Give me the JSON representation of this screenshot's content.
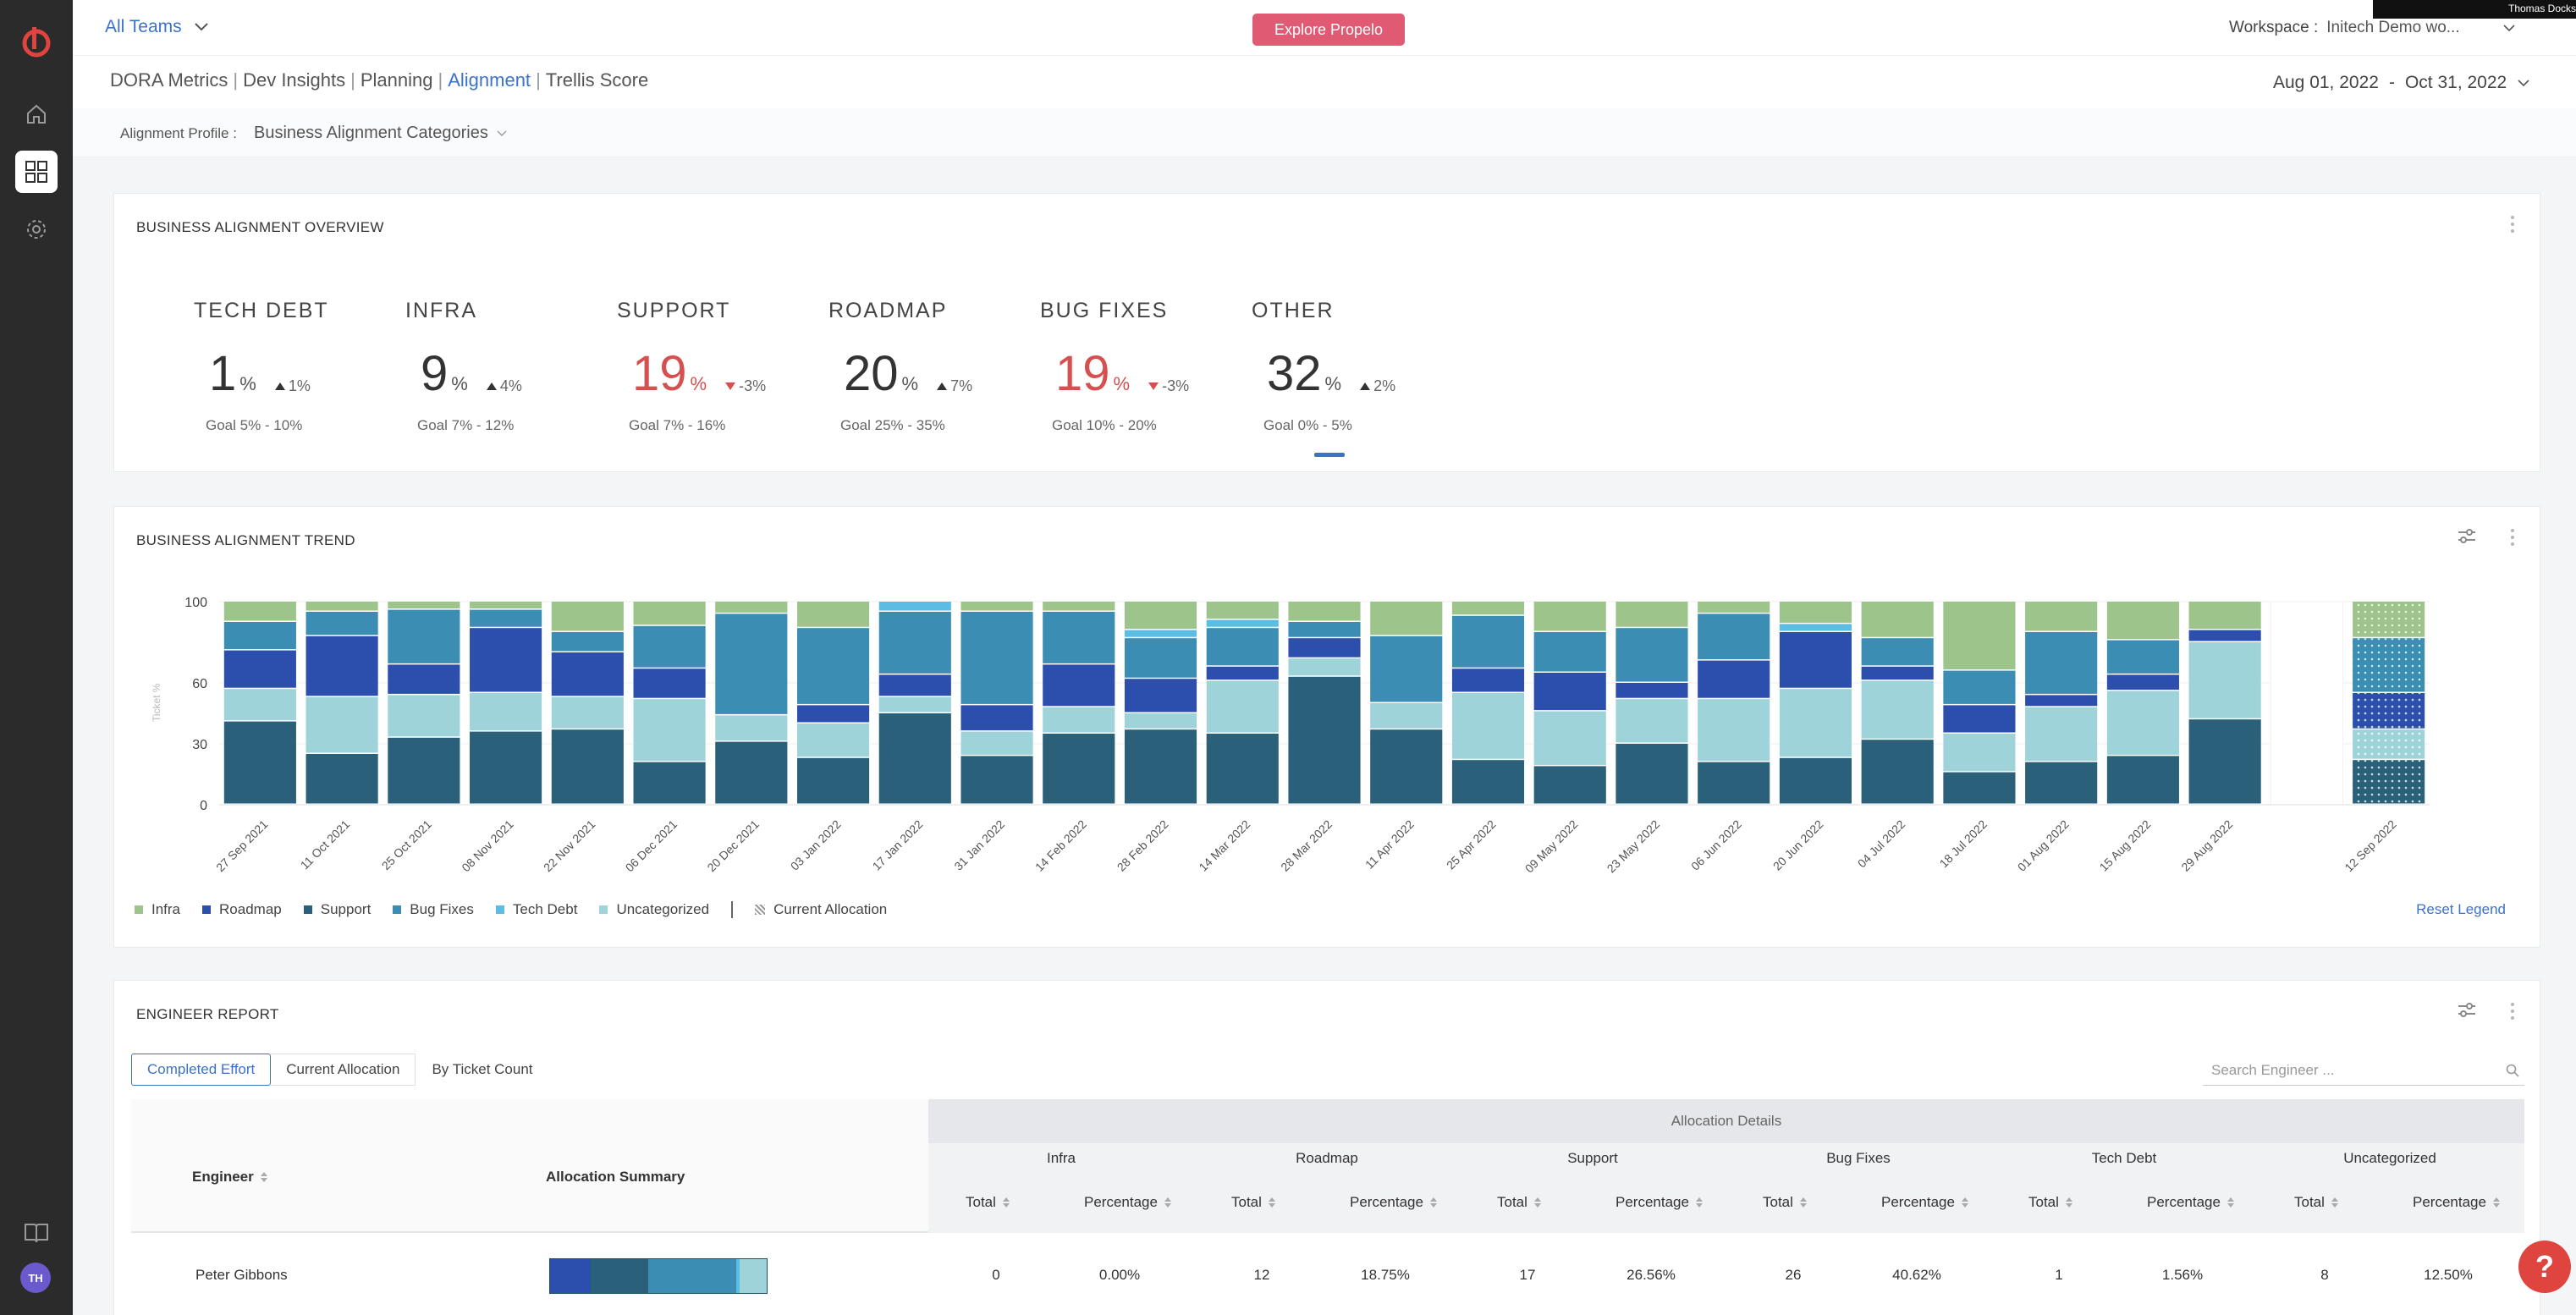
{
  "header": {
    "team_select": "All Teams",
    "explore_button": "Explore Propelo",
    "workspace_label": "Workspace :",
    "workspace_value": "Initech Demo wo...",
    "user_name": "Thomas Dockstader",
    "avatar_initials": "TH"
  },
  "nav": {
    "tabs": [
      "DORA Metrics",
      "Dev Insights",
      "Planning",
      "Alignment",
      "Trellis Score"
    ],
    "active_tab": "Alignment",
    "date_start": "Aug 01, 2022",
    "date_sep": "-",
    "date_end": "Oct 31, 2022"
  },
  "profile": {
    "label": "Alignment Profile :",
    "value": "Business Alignment Categories"
  },
  "overview": {
    "title": "BUSINESS ALIGNMENT OVERVIEW",
    "metrics": [
      {
        "name": "TECH DEBT",
        "value": "1",
        "unit": "%",
        "delta": "1%",
        "direction": "up",
        "alert": false,
        "goal": "Goal 5% - 10%"
      },
      {
        "name": "INFRA",
        "value": "9",
        "unit": "%",
        "delta": "4%",
        "direction": "up",
        "alert": false,
        "goal": "Goal 7% - 12%"
      },
      {
        "name": "SUPPORT",
        "value": "19",
        "unit": "%",
        "delta": "-3%",
        "direction": "down",
        "alert": true,
        "goal": "Goal 7% - 16%"
      },
      {
        "name": "ROADMAP",
        "value": "20",
        "unit": "%",
        "delta": "7%",
        "direction": "up",
        "alert": false,
        "goal": "Goal 25% - 35%"
      },
      {
        "name": "BUG FIXES",
        "value": "19",
        "unit": "%",
        "delta": "-3%",
        "direction": "down",
        "alert": true,
        "goal": "Goal 10% - 20%"
      },
      {
        "name": "OTHER",
        "value": "32",
        "unit": "%",
        "delta": "2%",
        "direction": "up",
        "alert": false,
        "goal": "Goal 0% - 5%"
      }
    ]
  },
  "trend": {
    "title": "BUSINESS ALIGNMENT TREND",
    "reset_legend": "Reset Legend"
  },
  "chart_data": {
    "type": "bar",
    "stacked": true,
    "ylabel": "Ticket %",
    "ylim": [
      0,
      100
    ],
    "yticks": [
      0,
      30,
      60,
      100
    ],
    "categories": [
      "27 Sep 2021",
      "11 Oct 2021",
      "25 Oct 2021",
      "08 Nov 2021",
      "22 Nov 2021",
      "06 Dec 2021",
      "20 Dec 2021",
      "03 Jan 2022",
      "17 Jan 2022",
      "31 Jan 2022",
      "14 Feb 2022",
      "28 Feb 2022",
      "14 Mar 2022",
      "28 Mar 2022",
      "11 Apr 2022",
      "25 Apr 2022",
      "09 May 2022",
      "23 May 2022",
      "06 Jun 2022",
      "20 Jun 2022",
      "04 Jul 2022",
      "18 Jul 2022",
      "01 Aug 2022",
      "15 Aug 2022",
      "29 Aug 2022",
      "",
      "12 Sep 2022"
    ],
    "tick_labels": [
      "27 Sep 2021",
      "11 Oct 2021",
      "25 Oct 2021",
      "08 Nov 2021",
      "22 Nov 2021",
      "06 Dec 2021",
      "20 Dec 2021",
      "03 Jan 2022",
      "17 Jan 2022",
      "31 Jan 2022",
      "14 Feb 2022",
      "28 Feb 2022",
      "14 Mar 2022",
      "28 Mar 2022",
      "11 Apr 2022",
      "25 Apr 2022",
      "09 May 2022",
      "23 May 2022",
      "06 Jun 2022",
      "20 Jun 2022",
      "04 Jul 2022",
      "18 Jul 2022",
      "01 Aug 2022",
      "15 Aug 2022",
      "29 Aug 2022",
      "12 Sep 2022"
    ],
    "series": [
      {
        "name": "Support",
        "color": "#2a6079",
        "values": [
          41,
          25,
          33,
          36,
          37,
          21,
          31,
          23,
          45,
          24,
          35,
          37,
          35,
          63,
          37,
          22,
          19,
          30,
          21,
          23,
          32,
          16,
          21,
          24,
          42,
          0,
          22
        ]
      },
      {
        "name": "Uncategorized",
        "color": "#9fd3da",
        "values": [
          16,
          28,
          21,
          19,
          16,
          31,
          13,
          17,
          8,
          12,
          13,
          8,
          26,
          9,
          13,
          33,
          27,
          22,
          31,
          34,
          29,
          19,
          27,
          32,
          38,
          0,
          15
        ]
      },
      {
        "name": "Roadmap",
        "color": "#2c4fae",
        "values": [
          19,
          30,
          15,
          32,
          22,
          15,
          0,
          9,
          11,
          13,
          21,
          17,
          7,
          10,
          0,
          12,
          19,
          8,
          19,
          28,
          7,
          14,
          6,
          8,
          6,
          0,
          18
        ]
      },
      {
        "name": "Bug Fixes",
        "color": "#3b8db4",
        "values": [
          14,
          12,
          27,
          9,
          10,
          21,
          50,
          38,
          31,
          46,
          26,
          20,
          19,
          8,
          33,
          26,
          20,
          27,
          23,
          0,
          14,
          17,
          31,
          17,
          0,
          0,
          27
        ]
      },
      {
        "name": "Tech Debt",
        "color": "#5bbde4",
        "values": [
          0,
          0,
          0,
          0,
          0,
          0,
          0,
          0,
          5,
          0,
          0,
          4,
          4,
          0,
          0,
          0,
          0,
          0,
          0,
          4,
          0,
          0,
          0,
          0,
          0,
          0,
          0
        ]
      },
      {
        "name": "Infra",
        "color": "#9dc48a",
        "values": [
          10,
          5,
          4,
          4,
          15,
          12,
          6,
          13,
          0,
          5,
          5,
          14,
          9,
          10,
          17,
          7,
          15,
          13,
          6,
          11,
          18,
          34,
          15,
          19,
          14,
          0,
          18
        ]
      }
    ],
    "legend": [
      "Infra",
      "Roadmap",
      "Support",
      "Bug Fixes",
      "Tech Debt",
      "Uncategorized",
      "Current Allocation"
    ],
    "legend_position": "bottom-left"
  },
  "report": {
    "title": "ENGINEER REPORT",
    "tabs": [
      "Completed Effort",
      "Current Allocation",
      "By Ticket Count"
    ],
    "search_placeholder": "Search Engineer ...",
    "col_engineer": "Engineer",
    "col_summary": "Allocation Summary",
    "alloc_details": "Allocation Details",
    "categories": [
      "Infra",
      "Roadmap",
      "Support",
      "Bug Fixes",
      "Tech Debt",
      "Uncategorized"
    ],
    "sub_total": "Total",
    "sub_percentage": "Percentage",
    "rows": [
      {
        "engineer": "Peter Gibbons",
        "values": [
          "0",
          "0.00%",
          "12",
          "18.75%",
          "17",
          "26.56%",
          "26",
          "40.62%",
          "1",
          "1.56%",
          "8",
          "12.50%"
        ],
        "bar": [
          {
            "color": "#2c4fae",
            "pct": 18.75
          },
          {
            "color": "#2a6079",
            "pct": 26.56
          },
          {
            "color": "#3b8db4",
            "pct": 40.62
          },
          {
            "color": "#5bbde4",
            "pct": 1.56
          },
          {
            "color": "#9fd3da",
            "pct": 12.5
          }
        ]
      }
    ]
  }
}
